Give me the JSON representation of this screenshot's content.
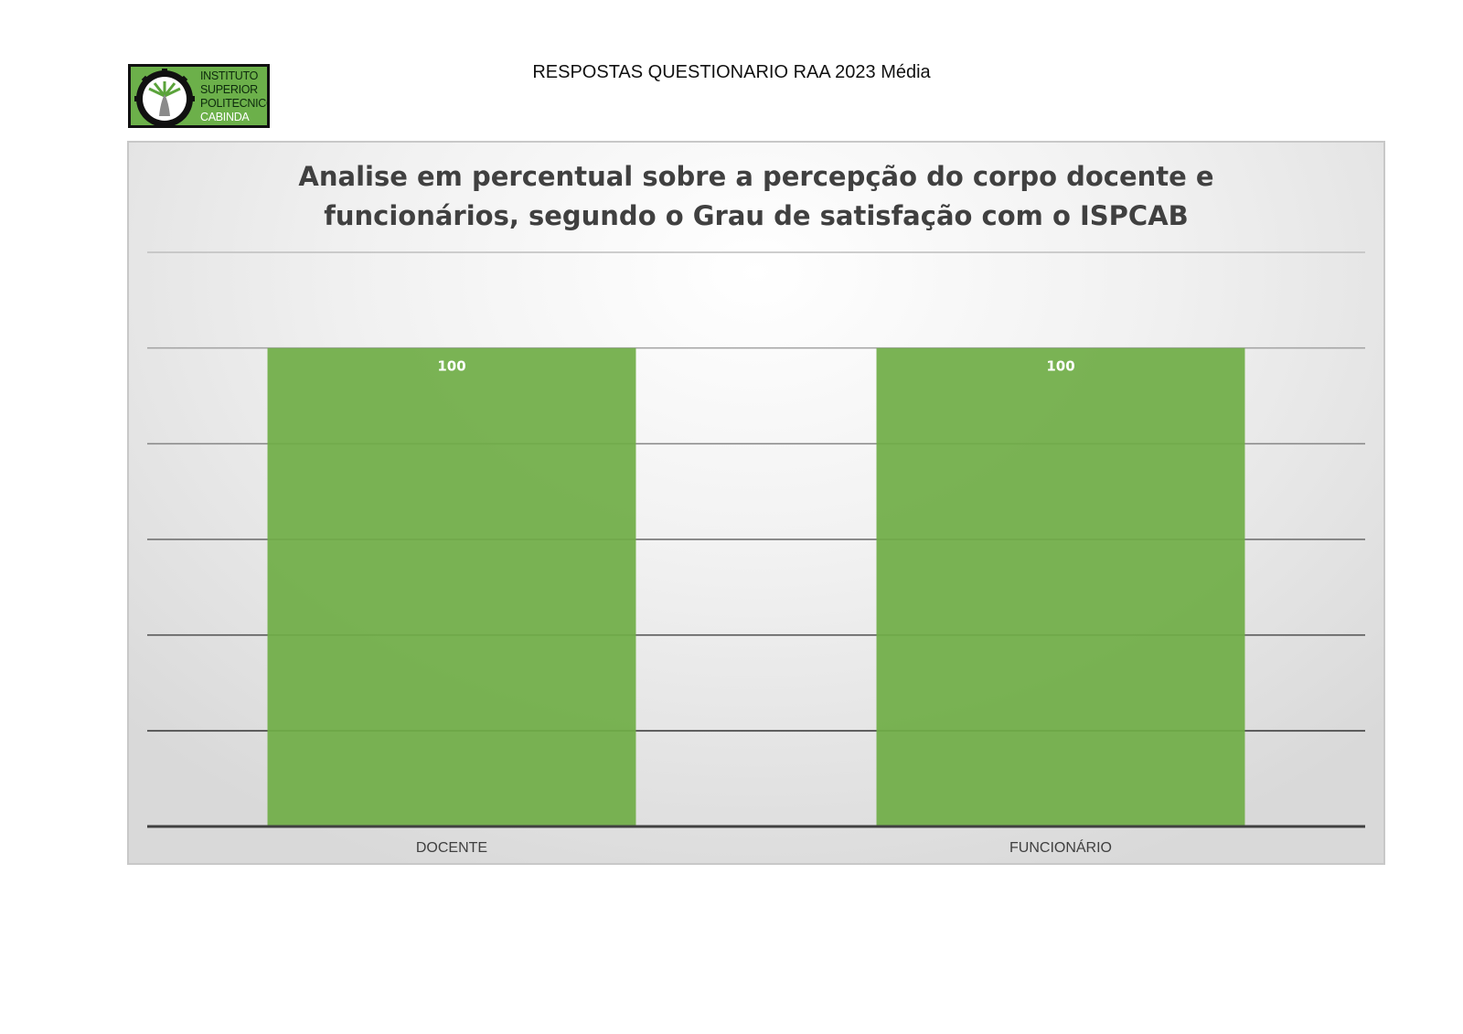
{
  "header": {
    "title": "RESPOSTAS QUESTIONARIO RAA 2023 Média"
  },
  "logo": {
    "lines": [
      "INSTITUTO",
      "SUPERIOR",
      "POLITECNICO",
      "CABINDA"
    ],
    "accent_color": "#6cb04a"
  },
  "chart_data": {
    "type": "bar",
    "title_lines": [
      "Analise em percentual sobre a percepção do corpo docente e",
      "funcionários, segundo o Grau de satisfação com o ISPCAB"
    ],
    "categories": [
      "DOCENTE",
      "FUNCIONÁRIO"
    ],
    "values": [
      100,
      100
    ],
    "data_labels": [
      "100",
      "100"
    ],
    "ylim": [
      0,
      120
    ],
    "gridline_step": 20,
    "grid": true,
    "legend": "none",
    "bar_color": "#70ad47",
    "xlabel": "",
    "ylabel": ""
  }
}
